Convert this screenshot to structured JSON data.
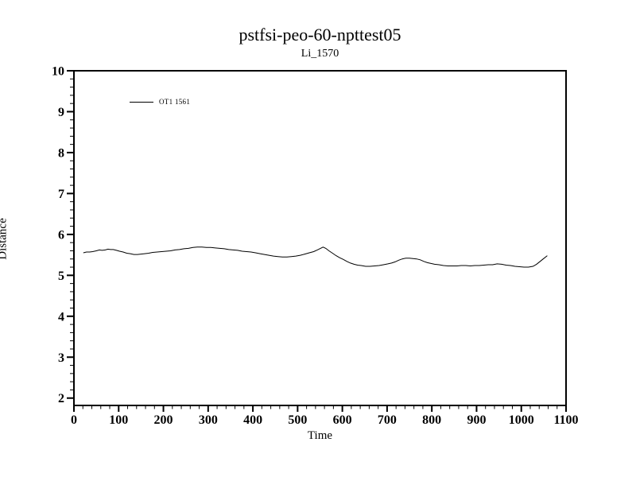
{
  "window": {
    "background": "#ffffff",
    "foreground": "#000000"
  },
  "chart_data": {
    "type": "line",
    "title": "pstfsi-peo-60-npttest05",
    "subtitle": "Li_1570",
    "xlabel": "Time",
    "ylabel": "Distance",
    "x_range": [
      0,
      1100
    ],
    "y_range": [
      1.82,
      10
    ],
    "x_major_ticks": [
      0,
      100,
      200,
      300,
      400,
      500,
      600,
      700,
      800,
      900,
      1000,
      1100
    ],
    "x_minor_step": 20,
    "y_major_ticks": [
      2,
      3,
      4,
      5,
      6,
      7,
      8,
      9,
      10
    ],
    "y_minor_step": 0.2,
    "grid": false,
    "line_color": "#000000",
    "legend": {
      "position": "top-left-inside",
      "entries": [
        {
          "label": "OT1 1561",
          "color": "#000000"
        }
      ]
    },
    "series": [
      {
        "name": "OT1 1561",
        "points": [
          [
            21,
            5.55
          ],
          [
            28,
            5.57
          ],
          [
            35,
            5.57
          ],
          [
            42,
            5.58
          ],
          [
            50,
            5.6
          ],
          [
            57,
            5.62
          ],
          [
            63,
            5.61
          ],
          [
            70,
            5.62
          ],
          [
            76,
            5.64
          ],
          [
            82,
            5.63
          ],
          [
            88,
            5.63
          ],
          [
            95,
            5.61
          ],
          [
            102,
            5.59
          ],
          [
            110,
            5.57
          ],
          [
            118,
            5.54
          ],
          [
            126,
            5.53
          ],
          [
            134,
            5.51
          ],
          [
            142,
            5.51
          ],
          [
            150,
            5.52
          ],
          [
            158,
            5.53
          ],
          [
            167,
            5.54
          ],
          [
            176,
            5.56
          ],
          [
            186,
            5.57
          ],
          [
            196,
            5.58
          ],
          [
            206,
            5.59
          ],
          [
            216,
            5.6
          ],
          [
            226,
            5.62
          ],
          [
            236,
            5.63
          ],
          [
            246,
            5.65
          ],
          [
            256,
            5.66
          ],
          [
            266,
            5.68
          ],
          [
            276,
            5.69
          ],
          [
            286,
            5.69
          ],
          [
            296,
            5.68
          ],
          [
            306,
            5.68
          ],
          [
            316,
            5.67
          ],
          [
            326,
            5.66
          ],
          [
            336,
            5.65
          ],
          [
            346,
            5.63
          ],
          [
            356,
            5.62
          ],
          [
            366,
            5.61
          ],
          [
            376,
            5.59
          ],
          [
            386,
            5.58
          ],
          [
            396,
            5.57
          ],
          [
            406,
            5.55
          ],
          [
            416,
            5.53
          ],
          [
            426,
            5.51
          ],
          [
            436,
            5.49
          ],
          [
            446,
            5.47
          ],
          [
            456,
            5.46
          ],
          [
            466,
            5.45
          ],
          [
            476,
            5.45
          ],
          [
            486,
            5.46
          ],
          [
            496,
            5.47
          ],
          [
            506,
            5.49
          ],
          [
            516,
            5.52
          ],
          [
            526,
            5.55
          ],
          [
            536,
            5.58
          ],
          [
            544,
            5.62
          ],
          [
            551,
            5.66
          ],
          [
            557,
            5.69
          ],
          [
            563,
            5.66
          ],
          [
            570,
            5.6
          ],
          [
            578,
            5.54
          ],
          [
            586,
            5.48
          ],
          [
            594,
            5.43
          ],
          [
            602,
            5.39
          ],
          [
            610,
            5.34
          ],
          [
            618,
            5.3
          ],
          [
            626,
            5.27
          ],
          [
            634,
            5.25
          ],
          [
            642,
            5.24
          ],
          [
            652,
            5.22
          ],
          [
            662,
            5.22
          ],
          [
            672,
            5.23
          ],
          [
            682,
            5.24
          ],
          [
            692,
            5.26
          ],
          [
            702,
            5.28
          ],
          [
            710,
            5.3
          ],
          [
            718,
            5.33
          ],
          [
            726,
            5.37
          ],
          [
            734,
            5.4
          ],
          [
            742,
            5.42
          ],
          [
            750,
            5.42
          ],
          [
            758,
            5.41
          ],
          [
            766,
            5.4
          ],
          [
            774,
            5.38
          ],
          [
            782,
            5.34
          ],
          [
            790,
            5.31
          ],
          [
            798,
            5.29
          ],
          [
            806,
            5.27
          ],
          [
            816,
            5.26
          ],
          [
            826,
            5.24
          ],
          [
            836,
            5.23
          ],
          [
            846,
            5.23
          ],
          [
            856,
            5.23
          ],
          [
            866,
            5.24
          ],
          [
            876,
            5.24
          ],
          [
            886,
            5.23
          ],
          [
            896,
            5.24
          ],
          [
            906,
            5.24
          ],
          [
            916,
            5.25
          ],
          [
            926,
            5.26
          ],
          [
            936,
            5.26
          ],
          [
            946,
            5.28
          ],
          [
            956,
            5.27
          ],
          [
            966,
            5.25
          ],
          [
            976,
            5.24
          ],
          [
            986,
            5.22
          ],
          [
            996,
            5.21
          ],
          [
            1006,
            5.2
          ],
          [
            1016,
            5.2
          ],
          [
            1026,
            5.22
          ],
          [
            1034,
            5.27
          ],
          [
            1042,
            5.34
          ],
          [
            1050,
            5.41
          ],
          [
            1058,
            5.48
          ]
        ]
      }
    ]
  }
}
